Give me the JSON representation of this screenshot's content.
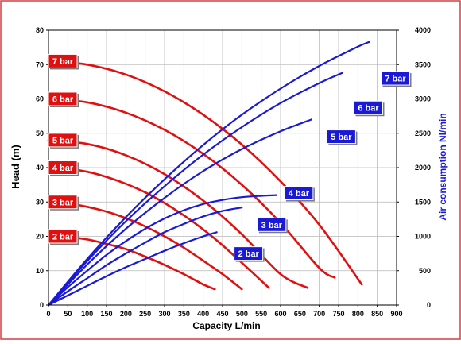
{
  "chart_data": {
    "type": "line",
    "title": "",
    "xlabel": "Capacity L/min",
    "ylabel": "Head (m)",
    "y2label": "Air consumption Nl/min",
    "xlim": [
      0,
      900
    ],
    "ylim": [
      0,
      80
    ],
    "y2lim": [
      0,
      4000
    ],
    "x_ticks": [
      0,
      50,
      100,
      150,
      200,
      250,
      300,
      350,
      400,
      450,
      500,
      550,
      600,
      650,
      700,
      750,
      800,
      850,
      900
    ],
    "y_ticks": [
      0,
      10,
      20,
      30,
      40,
      50,
      60,
      70,
      80
    ],
    "y2_ticks": [
      0,
      500,
      1000,
      1500,
      2000,
      2500,
      3000,
      3500,
      4000
    ],
    "grid": true,
    "colors": {
      "head": "#e01010",
      "air": "#1a1ad6",
      "frame": "#d04040"
    },
    "head_series": [
      {
        "name": "2 bar",
        "x": [
          0,
          50,
          100,
          150,
          200,
          250,
          300,
          350,
          400,
          430
        ],
        "y": [
          20,
          19.8,
          19.1,
          17.8,
          16.3,
          14.1,
          11.7,
          9.0,
          6.0,
          4.6
        ]
      },
      {
        "name": "3 bar",
        "x": [
          0,
          50,
          100,
          150,
          200,
          250,
          300,
          350,
          400,
          450,
          500
        ],
        "y": [
          30,
          29.6,
          28.6,
          27.2,
          25.3,
          22.9,
          20.0,
          16.7,
          12.9,
          9.0,
          4.6
        ]
      },
      {
        "name": "4 bar",
        "x": [
          0,
          50,
          100,
          150,
          200,
          250,
          300,
          350,
          400,
          450,
          500,
          570
        ],
        "y": [
          40,
          39.7,
          38.8,
          37.3,
          35.3,
          32.8,
          29.7,
          26.1,
          22.0,
          17.4,
          12.3,
          5.0
        ]
      },
      {
        "name": "5 bar",
        "x": [
          0,
          100,
          200,
          300,
          400,
          500,
          600,
          670
        ],
        "y": [
          48,
          46.9,
          43.6,
          38.1,
          30.4,
          20.6,
          9.0,
          5.0
        ]
      },
      {
        "name": "6 bar",
        "x": [
          0,
          100,
          200,
          300,
          400,
          500,
          600,
          700,
          740
        ],
        "y": [
          60,
          59.0,
          56.0,
          51.0,
          44.0,
          35.0,
          23.9,
          10.8,
          8.0
        ]
      },
      {
        "name": "7 bar",
        "x": [
          0,
          100,
          200,
          300,
          400,
          500,
          600,
          700,
          810
        ],
        "y": [
          71,
          70.0,
          67.1,
          62.2,
          55.4,
          46.7,
          36.0,
          23.4,
          6.0
        ]
      }
    ],
    "air_series": [
      {
        "name": "2 bar",
        "x": [
          0,
          50,
          100,
          150,
          200,
          250,
          300,
          350,
          400,
          435
        ],
        "y": [
          0,
          140,
          280,
          420,
          550,
          670,
          790,
          900,
          1000,
          1060
        ]
      },
      {
        "name": "3 bar",
        "x": [
          0,
          50,
          100,
          150,
          200,
          250,
          300,
          350,
          400,
          450,
          500
        ],
        "y": [
          0,
          200,
          390,
          580,
          750,
          910,
          1060,
          1180,
          1290,
          1370,
          1420
        ]
      },
      {
        "name": "4 bar",
        "x": [
          0,
          50,
          100,
          150,
          200,
          250,
          300,
          350,
          400,
          450,
          500,
          550,
          590
        ],
        "y": [
          0,
          260,
          500,
          730,
          930,
          1110,
          1260,
          1380,
          1470,
          1530,
          1570,
          1590,
          1600
        ]
      },
      {
        "name": "5 bar",
        "x": [
          0,
          100,
          200,
          300,
          400,
          500,
          600,
          680
        ],
        "y": [
          0,
          590,
          1110,
          1560,
          1950,
          2270,
          2530,
          2700
        ]
      },
      {
        "name": "6 bar",
        "x": [
          0,
          100,
          200,
          300,
          400,
          500,
          600,
          700,
          760
        ],
        "y": [
          0,
          640,
          1220,
          1730,
          2190,
          2590,
          2940,
          3230,
          3380
        ]
      },
      {
        "name": "7 bar",
        "x": [
          0,
          100,
          200,
          300,
          400,
          500,
          600,
          700,
          800,
          830
        ],
        "y": [
          0,
          670,
          1280,
          1830,
          2330,
          2770,
          3150,
          3480,
          3760,
          3830
        ]
      }
    ],
    "head_badges": [
      {
        "label": "7 bar",
        "y": 71
      },
      {
        "label": "6 bar",
        "y": 60
      },
      {
        "label": "5 bar",
        "y": 48
      },
      {
        "label": "4 bar",
        "y": 40
      },
      {
        "label": "3 bar",
        "y": 30
      },
      {
        "label": "2 bar",
        "y": 20
      }
    ],
    "air_badges": [
      {
        "label": "7 bar",
        "x": 860,
        "y2": 3300
      },
      {
        "label": "6 bar",
        "x": 790,
        "y2": 2870
      },
      {
        "label": "5 bar",
        "x": 720,
        "y2": 2450
      },
      {
        "label": "4 bar",
        "x": 610,
        "y2": 1630
      },
      {
        "label": "3 bar",
        "x": 540,
        "y2": 1170
      },
      {
        "label": "2 bar",
        "x": 480,
        "y2": 750
      }
    ]
  }
}
